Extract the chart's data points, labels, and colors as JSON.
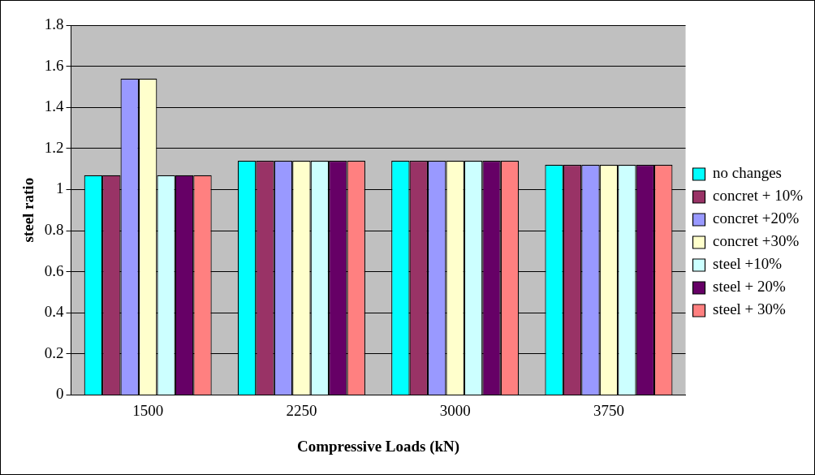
{
  "chart_data": {
    "type": "bar",
    "xlabel": "Compressive Loads (kN)",
    "ylabel": "steel ratio",
    "categories": [
      "1500",
      "2250",
      "3000",
      "3750"
    ],
    "series": [
      {
        "name": "no changes",
        "color": "#00ffff",
        "values": [
          1.07,
          1.14,
          1.14,
          1.12
        ]
      },
      {
        "name": "concret + 10%",
        "color": "#993366",
        "values": [
          1.07,
          1.14,
          1.14,
          1.12
        ]
      },
      {
        "name": "concret +20%",
        "color": "#9999ff",
        "values": [
          1.54,
          1.14,
          1.14,
          1.12
        ]
      },
      {
        "name": "concret +30%",
        "color": "#ffffcc",
        "values": [
          1.54,
          1.14,
          1.14,
          1.12
        ]
      },
      {
        "name": "steel +10%",
        "color": "#ccffff",
        "values": [
          1.07,
          1.14,
          1.14,
          1.12
        ]
      },
      {
        "name": "steel + 20%",
        "color": "#660066",
        "values": [
          1.07,
          1.14,
          1.14,
          1.12
        ]
      },
      {
        "name": "steel + 30%",
        "color": "#ff8080",
        "values": [
          1.07,
          1.14,
          1.14,
          1.12
        ]
      }
    ],
    "ylim": [
      0,
      1.8
    ],
    "yticks": [
      0,
      0.2,
      0.4,
      0.6,
      0.8,
      1,
      1.2,
      1.4,
      1.6,
      1.8
    ],
    "grid": "y",
    "legend": "right"
  }
}
